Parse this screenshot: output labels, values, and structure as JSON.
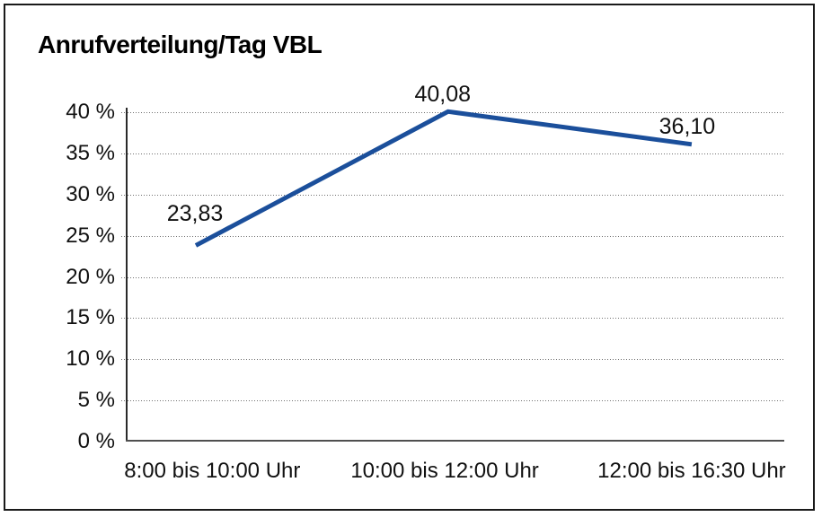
{
  "title": "Anrufverteilung/Tag VBL",
  "chart_data": {
    "type": "line",
    "title": "Anrufverteilung/Tag VBL",
    "categories": [
      "8:00 bis 10:00 Uhr",
      "10:00 bis 12:00 Uhr",
      "12:00 bis 16:30 Uhr"
    ],
    "series": [
      {
        "name": "Anrufverteilung",
        "values": [
          23.83,
          40.08,
          36.1
        ]
      }
    ],
    "data_labels": [
      "23,83",
      "40,08",
      "36,10"
    ],
    "xlabel": "",
    "ylabel": "",
    "ylim": [
      0,
      40
    ],
    "ytick_step": 5,
    "ytick_labels": [
      "0 %",
      "5 %",
      "10 %",
      "15 %",
      "20 %",
      "25 %",
      "30 %",
      "35 %",
      "40 %"
    ],
    "grid": "horizontal-dotted",
    "legend_position": "none"
  },
  "colors": {
    "line": "#1b4f9b",
    "text": "#111111",
    "grid": "#707070",
    "axis": "#4f4f4f",
    "border": "#1a1a1a",
    "background": "#ffffff"
  }
}
